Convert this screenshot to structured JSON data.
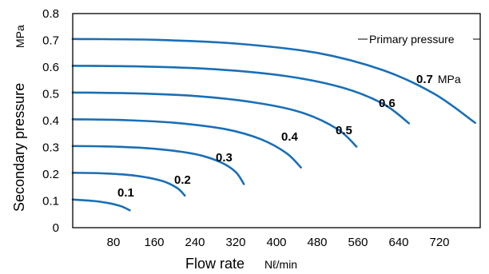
{
  "chart_data": {
    "type": "line",
    "xlabel": "Flow rate",
    "xunit": "Nℓ/min",
    "ylabel": "Secondary pressure",
    "yunit": "MPa",
    "xlim": [
      0,
      800
    ],
    "ylim": [
      0,
      0.8
    ],
    "xticks": [
      "80",
      "160",
      "240",
      "320",
      "400",
      "480",
      "560",
      "640",
      "720"
    ],
    "yticks": [
      "0",
      "0.1",
      "0.2",
      "0.3",
      "0.4",
      "0.5",
      "0.6",
      "0.7",
      "0.8"
    ],
    "grid": false,
    "color": "#1a6fb5",
    "annotation": "Primary pressure",
    "series": [
      {
        "name": "0.1",
        "label": "0.1",
        "x": [
          0,
          40,
          70,
          95,
          112
        ],
        "y": [
          0.105,
          0.1,
          0.092,
          0.08,
          0.065
        ]
      },
      {
        "name": "0.2",
        "label": "0.2",
        "x": [
          0,
          60,
          120,
          175,
          205,
          220
        ],
        "y": [
          0.205,
          0.203,
          0.195,
          0.175,
          0.148,
          0.12
        ]
      },
      {
        "name": "0.3",
        "label": "0.3",
        "x": [
          0,
          80,
          160,
          240,
          290,
          320,
          336
        ],
        "y": [
          0.305,
          0.303,
          0.295,
          0.275,
          0.245,
          0.208,
          0.163
        ]
      },
      {
        "name": "0.4",
        "label": "0.4",
        "x": [
          0,
          100,
          200,
          300,
          370,
          420,
          448
        ],
        "y": [
          0.405,
          0.402,
          0.392,
          0.368,
          0.33,
          0.278,
          0.225
        ]
      },
      {
        "name": "0.5",
        "label": "0.5",
        "x": [
          0,
          120,
          240,
          360,
          450,
          520,
          557
        ],
        "y": [
          0.505,
          0.502,
          0.492,
          0.467,
          0.43,
          0.368,
          0.303
        ]
      },
      {
        "name": "0.6",
        "label": "0.6",
        "x": [
          0,
          140,
          280,
          420,
          530,
          610,
          660
        ],
        "y": [
          0.605,
          0.602,
          0.592,
          0.566,
          0.523,
          0.462,
          0.39
        ]
      },
      {
        "name": "0.7",
        "label": "0.7 MPa",
        "x": [
          0,
          160,
          320,
          480,
          610,
          710,
          790
        ],
        "y": [
          0.705,
          0.702,
          0.688,
          0.653,
          0.588,
          0.5,
          0.392
        ]
      }
    ]
  }
}
